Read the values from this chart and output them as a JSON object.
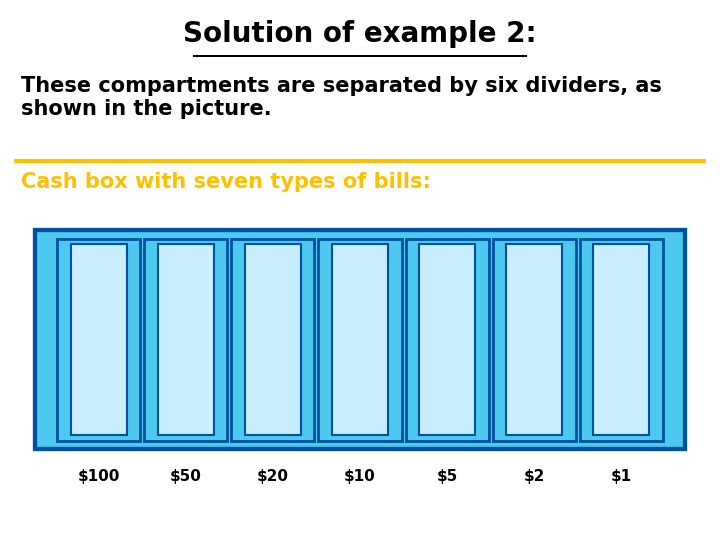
{
  "title": "Solution of example 2:",
  "title_bg_color": "#FFC000",
  "title_text_color": "#000000",
  "title_fontsize": 20,
  "body_text": "These compartments are separated by six dividers, as\nshown in the picture.",
  "body_fontsize": 15,
  "subheading": "Cash box with seven types of bills:",
  "subheading_color": "#FFC000",
  "subheading_fontsize": 15,
  "separator_color": "#FFC000",
  "bill_labels": [
    "$100",
    "$50",
    "$20",
    "$10",
    "$5",
    "$2",
    "$1"
  ],
  "num_compartments": 7,
  "box_fill_color": "#4DC8EE",
  "box_border_color": "#0050A0",
  "inner_fill_color": "#C8EEFF",
  "bg_color": "#FFFFFF"
}
